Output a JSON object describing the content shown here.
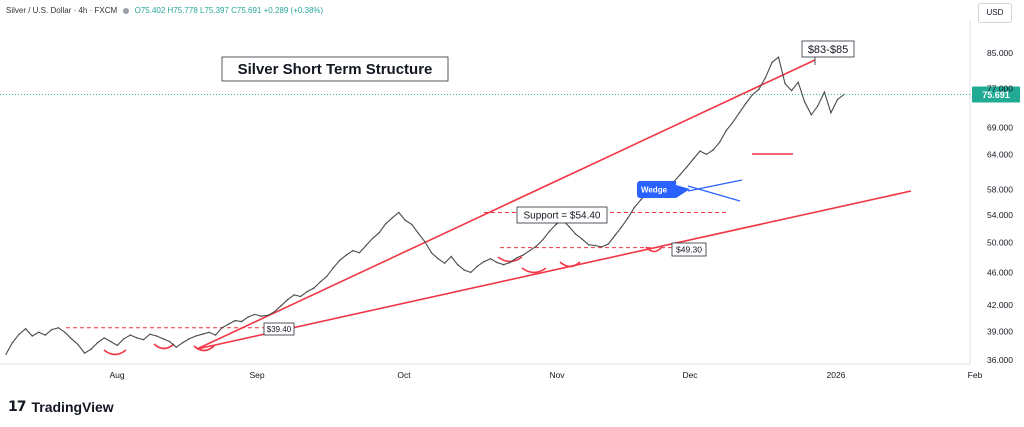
{
  "header": {
    "symbol": "Silver / U.S. Dollar · 4h · FXCM",
    "ohlc": "O75.402  H75.778  L75.397  C75.691  +0.289 (+0.38%)",
    "currency_button": "USD"
  },
  "brand": {
    "logo_text": "TradingView"
  },
  "chart_data": {
    "type": "line",
    "title": "Silver Short Term Structure",
    "scale": "log",
    "ylim": [
      36,
      90
    ],
    "y_ticks": [
      85.0,
      77.0,
      69.0,
      64.0,
      58.0,
      54.0,
      50.0,
      46.0,
      42.0,
      39.0,
      36.0
    ],
    "y_tick_labels": [
      "85.000",
      "77.000",
      "69.000",
      "64.000",
      "58.000",
      "54.000",
      "50.000",
      "46.000",
      "42.000",
      "39.000",
      "36.000"
    ],
    "x_tick_labels": [
      "Aug",
      "Sep",
      "Oct",
      "Nov",
      "Dec",
      "2026",
      "Feb"
    ],
    "last_price": 75.691,
    "last_price_label": "75.691",
    "series": [
      {
        "values": [
          36.6,
          37.8,
          38.7,
          39.3,
          38.5,
          38.9,
          38.6,
          39.2,
          39.4,
          38.9,
          38.2,
          37.6,
          36.7,
          37.1,
          37.8,
          38.3,
          37.9,
          37.5,
          38.2,
          38.6,
          38.3,
          38.1,
          38.7,
          38.5,
          38.2,
          37.9,
          37.3,
          37.8,
          38.2,
          38.5,
          38.7,
          38.9,
          38.6,
          39.4,
          39.8,
          40.2,
          40.1,
          40.6,
          40.9,
          40.7,
          40.8,
          41.2,
          41.9,
          42.6,
          43.2,
          43.0,
          43.6,
          44.0,
          44.8,
          45.5,
          46.6,
          47.6,
          48.3,
          48.9,
          48.6,
          49.6,
          50.6,
          51.4,
          52.7,
          53.6,
          54.4,
          53.2,
          52.6,
          51.3,
          50.1,
          48.6,
          47.8,
          47.2,
          48.1,
          47.0,
          46.3,
          46.0,
          46.8,
          47.4,
          47.8,
          47.3,
          47.0,
          47.3,
          47.9,
          48.3,
          48.9,
          49.5,
          50.4,
          51.6,
          52.6,
          53.3,
          52.3,
          51.2,
          50.5,
          49.7,
          49.6,
          49.4,
          49.8,
          51.0,
          52.2,
          53.6,
          55.2,
          56.4,
          57.5,
          57.3,
          57.9,
          58.5,
          59.3,
          60.5,
          61.8,
          63.2,
          64.6,
          64.0,
          64.8,
          66.2,
          68.4,
          70.0,
          71.9,
          73.8,
          75.6,
          76.8,
          79.3,
          82.8,
          84.0,
          78.0,
          76.5,
          78.3,
          74.1,
          71.5,
          73.3,
          76.2,
          71.9,
          74.6,
          75.7
        ]
      }
    ],
    "annotations": {
      "target_box": "$83-$85",
      "support_label": "Support = $54.40",
      "support_value": 54.4,
      "low_label": "$49.30",
      "low_value": 49.3,
      "pivot_label": "$39.40",
      "pivot_value": 39.4,
      "pattern_label": "Wedge"
    },
    "colors": {
      "price": "#4a4a4a",
      "trendline": "#f23645",
      "wedge": "#2962ff",
      "axis_text": "#131722",
      "last_price_bg": "#22ab94"
    }
  }
}
